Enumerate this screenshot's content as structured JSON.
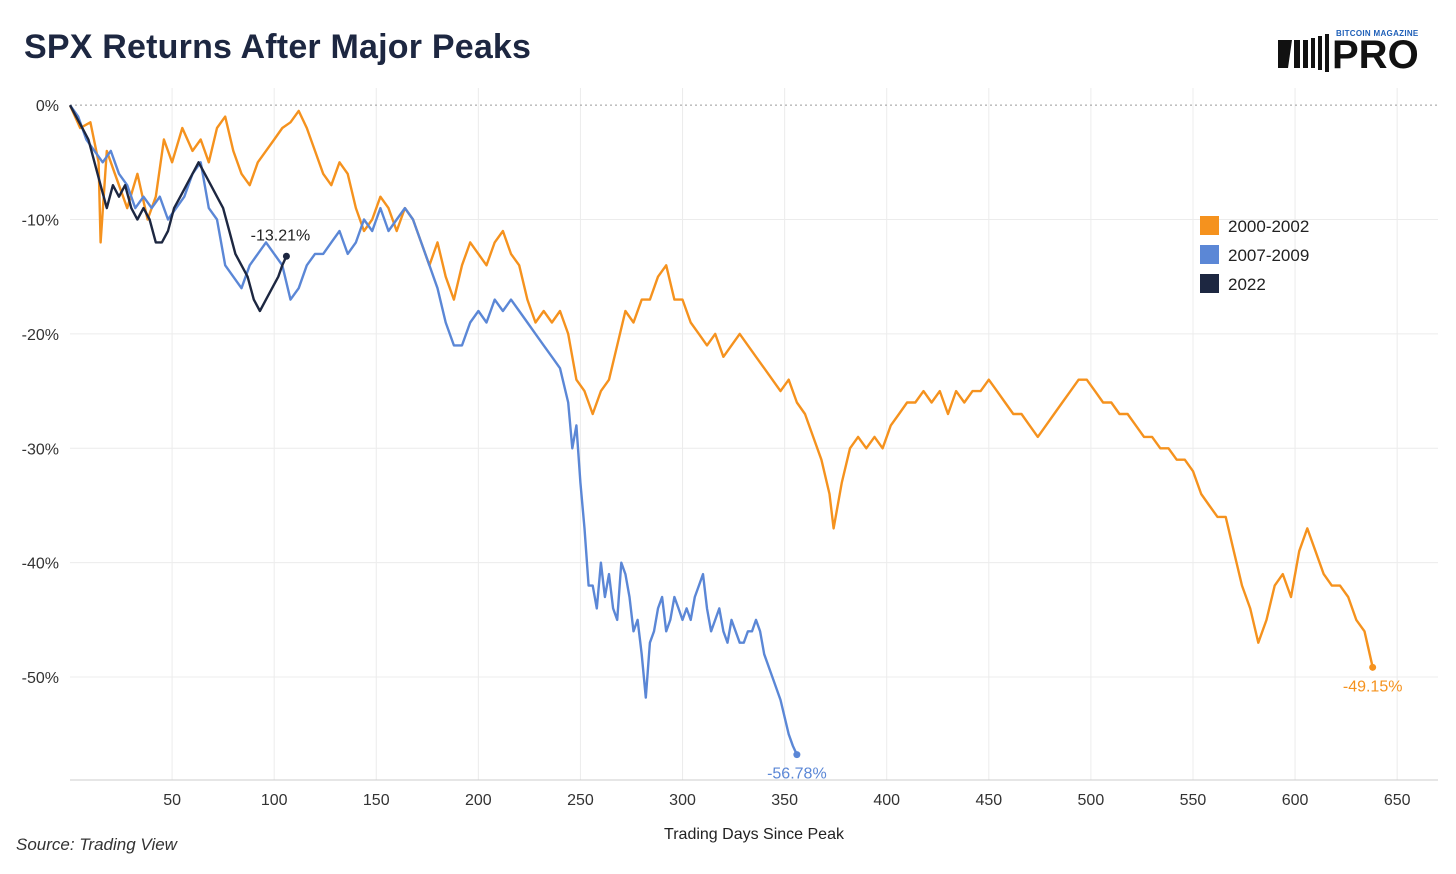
{
  "header": {
    "title": "SPX Returns After Major Peaks"
  },
  "logo": {
    "small_text": "BITCOIN MAGAZINE",
    "big_text": "PRO"
  },
  "footer": {
    "source": "Source: Trading View"
  },
  "chart_data": {
    "type": "line",
    "title": "SPX Returns After Major Peaks",
    "xlabel": "Trading Days Since Peak",
    "ylabel": "",
    "xlim": [
      0,
      670
    ],
    "ylim": [
      -59,
      1.5
    ],
    "x_ticks": [
      50,
      100,
      150,
      200,
      250,
      300,
      350,
      400,
      450,
      500,
      550,
      600,
      650
    ],
    "x_tick_labels": [
      "50",
      "100",
      "150",
      "200",
      "250",
      "300",
      "350",
      "400",
      "450",
      "500",
      "550",
      "600",
      "650"
    ],
    "y_ticks": [
      0,
      -10,
      -20,
      -30,
      -40,
      -50
    ],
    "y_tick_labels": [
      "0%",
      "-10%",
      "-20%",
      "-30%",
      "-40%",
      "-50%"
    ],
    "grid": true,
    "legend_position": "right",
    "series": [
      {
        "name": "2000-2002",
        "color": "#f5921e",
        "end_label": "-49.15%",
        "points": [
          [
            0,
            0
          ],
          [
            5,
            -2
          ],
          [
            10,
            -1.5
          ],
          [
            14,
            -5
          ],
          [
            15,
            -12
          ],
          [
            18,
            -4
          ],
          [
            22,
            -6
          ],
          [
            28,
            -9
          ],
          [
            33,
            -6
          ],
          [
            38,
            -10
          ],
          [
            42,
            -8
          ],
          [
            46,
            -3
          ],
          [
            50,
            -5
          ],
          [
            55,
            -2
          ],
          [
            60,
            -4
          ],
          [
            64,
            -3
          ],
          [
            68,
            -5
          ],
          [
            72,
            -2
          ],
          [
            76,
            -1
          ],
          [
            80,
            -4
          ],
          [
            84,
            -6
          ],
          [
            88,
            -7
          ],
          [
            92,
            -5
          ],
          [
            96,
            -4
          ],
          [
            100,
            -3
          ],
          [
            104,
            -2
          ],
          [
            108,
            -1.5
          ],
          [
            112,
            -0.5
          ],
          [
            116,
            -2
          ],
          [
            120,
            -4
          ],
          [
            124,
            -6
          ],
          [
            128,
            -7
          ],
          [
            132,
            -5
          ],
          [
            136,
            -6
          ],
          [
            140,
            -9
          ],
          [
            144,
            -11
          ],
          [
            148,
            -10
          ],
          [
            152,
            -8
          ],
          [
            156,
            -9
          ],
          [
            160,
            -11
          ],
          [
            164,
            -9
          ],
          [
            168,
            -10
          ],
          [
            172,
            -12
          ],
          [
            176,
            -14
          ],
          [
            180,
            -12
          ],
          [
            184,
            -15
          ],
          [
            188,
            -17
          ],
          [
            192,
            -14
          ],
          [
            196,
            -12
          ],
          [
            200,
            -13
          ],
          [
            204,
            -14
          ],
          [
            208,
            -12
          ],
          [
            212,
            -11
          ],
          [
            216,
            -13
          ],
          [
            220,
            -14
          ],
          [
            224,
            -17
          ],
          [
            228,
            -19
          ],
          [
            232,
            -18
          ],
          [
            236,
            -19
          ],
          [
            240,
            -18
          ],
          [
            244,
            -20
          ],
          [
            248,
            -24
          ],
          [
            252,
            -25
          ],
          [
            256,
            -27
          ],
          [
            260,
            -25
          ],
          [
            264,
            -24
          ],
          [
            268,
            -21
          ],
          [
            272,
            -18
          ],
          [
            276,
            -19
          ],
          [
            280,
            -17
          ],
          [
            284,
            -17
          ],
          [
            288,
            -15
          ],
          [
            292,
            -14
          ],
          [
            296,
            -17
          ],
          [
            300,
            -17
          ],
          [
            304,
            -19
          ],
          [
            308,
            -20
          ],
          [
            312,
            -21
          ],
          [
            316,
            -20
          ],
          [
            320,
            -22
          ],
          [
            324,
            -21
          ],
          [
            328,
            -20
          ],
          [
            332,
            -21
          ],
          [
            336,
            -22
          ],
          [
            340,
            -23
          ],
          [
            344,
            -24
          ],
          [
            348,
            -25
          ],
          [
            352,
            -24
          ],
          [
            356,
            -26
          ],
          [
            360,
            -27
          ],
          [
            364,
            -29
          ],
          [
            368,
            -31
          ],
          [
            372,
            -34
          ],
          [
            374,
            -37
          ],
          [
            378,
            -33
          ],
          [
            382,
            -30
          ],
          [
            386,
            -29
          ],
          [
            390,
            -30
          ],
          [
            394,
            -29
          ],
          [
            398,
            -30
          ],
          [
            402,
            -28
          ],
          [
            406,
            -27
          ],
          [
            410,
            -26
          ],
          [
            414,
            -26
          ],
          [
            418,
            -25
          ],
          [
            422,
            -26
          ],
          [
            426,
            -25
          ],
          [
            430,
            -27
          ],
          [
            434,
            -25
          ],
          [
            438,
            -26
          ],
          [
            442,
            -25
          ],
          [
            446,
            -25
          ],
          [
            450,
            -24
          ],
          [
            454,
            -25
          ],
          [
            458,
            -26
          ],
          [
            462,
            -27
          ],
          [
            466,
            -27
          ],
          [
            470,
            -28
          ],
          [
            474,
            -29
          ],
          [
            478,
            -28
          ],
          [
            482,
            -27
          ],
          [
            486,
            -26
          ],
          [
            490,
            -25
          ],
          [
            494,
            -24
          ],
          [
            498,
            -24
          ],
          [
            502,
            -25
          ],
          [
            506,
            -26
          ],
          [
            510,
            -26
          ],
          [
            514,
            -27
          ],
          [
            518,
            -27
          ],
          [
            522,
            -28
          ],
          [
            526,
            -29
          ],
          [
            530,
            -29
          ],
          [
            534,
            -30
          ],
          [
            538,
            -30
          ],
          [
            542,
            -31
          ],
          [
            546,
            -31
          ],
          [
            550,
            -32
          ],
          [
            554,
            -34
          ],
          [
            558,
            -35
          ],
          [
            562,
            -36
          ],
          [
            566,
            -36
          ],
          [
            570,
            -39
          ],
          [
            574,
            -42
          ],
          [
            578,
            -44
          ],
          [
            582,
            -47
          ],
          [
            586,
            -45
          ],
          [
            590,
            -42
          ],
          [
            594,
            -41
          ],
          [
            598,
            -43
          ],
          [
            602,
            -39
          ],
          [
            606,
            -37
          ],
          [
            610,
            -39
          ],
          [
            614,
            -41
          ],
          [
            618,
            -42
          ],
          [
            622,
            -42
          ],
          [
            626,
            -43
          ],
          [
            630,
            -45
          ],
          [
            634,
            -46
          ],
          [
            638,
            -49.15
          ]
        ]
      },
      {
        "name": "2007-2009",
        "color": "#5b87d6",
        "end_label": "-56.78%",
        "points": [
          [
            0,
            0
          ],
          [
            4,
            -1
          ],
          [
            8,
            -3
          ],
          [
            12,
            -4
          ],
          [
            16,
            -5
          ],
          [
            20,
            -4
          ],
          [
            24,
            -6
          ],
          [
            28,
            -7
          ],
          [
            32,
            -9
          ],
          [
            36,
            -8
          ],
          [
            40,
            -9
          ],
          [
            44,
            -8
          ],
          [
            48,
            -10
          ],
          [
            52,
            -9
          ],
          [
            56,
            -8
          ],
          [
            60,
            -6
          ],
          [
            64,
            -5
          ],
          [
            68,
            -9
          ],
          [
            72,
            -10
          ],
          [
            76,
            -14
          ],
          [
            80,
            -15
          ],
          [
            84,
            -16
          ],
          [
            88,
            -14
          ],
          [
            92,
            -13
          ],
          [
            96,
            -12
          ],
          [
            100,
            -13
          ],
          [
            104,
            -14
          ],
          [
            108,
            -17
          ],
          [
            112,
            -16
          ],
          [
            116,
            -14
          ],
          [
            120,
            -13
          ],
          [
            124,
            -13
          ],
          [
            128,
            -12
          ],
          [
            132,
            -11
          ],
          [
            136,
            -13
          ],
          [
            140,
            -12
          ],
          [
            144,
            -10
          ],
          [
            148,
            -11
          ],
          [
            152,
            -9
          ],
          [
            156,
            -11
          ],
          [
            160,
            -10
          ],
          [
            164,
            -9
          ],
          [
            168,
            -10
          ],
          [
            172,
            -12
          ],
          [
            176,
            -14
          ],
          [
            180,
            -16
          ],
          [
            184,
            -19
          ],
          [
            188,
            -21
          ],
          [
            192,
            -21
          ],
          [
            196,
            -19
          ],
          [
            200,
            -18
          ],
          [
            204,
            -19
          ],
          [
            208,
            -17
          ],
          [
            212,
            -18
          ],
          [
            216,
            -17
          ],
          [
            220,
            -18
          ],
          [
            224,
            -19
          ],
          [
            228,
            -20
          ],
          [
            232,
            -21
          ],
          [
            236,
            -22
          ],
          [
            240,
            -23
          ],
          [
            244,
            -26
          ],
          [
            246,
            -30
          ],
          [
            248,
            -28
          ],
          [
            250,
            -33
          ],
          [
            252,
            -37
          ],
          [
            254,
            -42
          ],
          [
            256,
            -42
          ],
          [
            258,
            -44
          ],
          [
            260,
            -40
          ],
          [
            262,
            -43
          ],
          [
            264,
            -41
          ],
          [
            266,
            -44
          ],
          [
            268,
            -45
          ],
          [
            270,
            -40
          ],
          [
            272,
            -41
          ],
          [
            274,
            -43
          ],
          [
            276,
            -46
          ],
          [
            278,
            -45
          ],
          [
            280,
            -48
          ],
          [
            282,
            -51.8
          ],
          [
            284,
            -47
          ],
          [
            286,
            -46
          ],
          [
            288,
            -44
          ],
          [
            290,
            -43
          ],
          [
            292,
            -46
          ],
          [
            294,
            -45
          ],
          [
            296,
            -43
          ],
          [
            298,
            -44
          ],
          [
            300,
            -45
          ],
          [
            302,
            -44
          ],
          [
            304,
            -45
          ],
          [
            306,
            -43
          ],
          [
            308,
            -42
          ],
          [
            310,
            -41
          ],
          [
            312,
            -44
          ],
          [
            314,
            -46
          ],
          [
            316,
            -45
          ],
          [
            318,
            -44
          ],
          [
            320,
            -46
          ],
          [
            322,
            -47
          ],
          [
            324,
            -45
          ],
          [
            326,
            -46
          ],
          [
            328,
            -47
          ],
          [
            330,
            -47
          ],
          [
            332,
            -46
          ],
          [
            334,
            -46
          ],
          [
            336,
            -45
          ],
          [
            338,
            -46
          ],
          [
            340,
            -48
          ],
          [
            344,
            -50
          ],
          [
            348,
            -52
          ],
          [
            352,
            -55
          ],
          [
            354,
            -56
          ],
          [
            356,
            -56.78
          ]
        ]
      },
      {
        "name": "2022",
        "color": "#1d2741",
        "end_label": "-13.21%",
        "points": [
          [
            0,
            0
          ],
          [
            3,
            -1
          ],
          [
            6,
            -2
          ],
          [
            9,
            -3
          ],
          [
            12,
            -5
          ],
          [
            15,
            -7
          ],
          [
            18,
            -9
          ],
          [
            21,
            -7
          ],
          [
            24,
            -8
          ],
          [
            27,
            -7
          ],
          [
            30,
            -9
          ],
          [
            33,
            -10
          ],
          [
            36,
            -9
          ],
          [
            39,
            -10
          ],
          [
            42,
            -12
          ],
          [
            45,
            -12
          ],
          [
            48,
            -11
          ],
          [
            51,
            -9
          ],
          [
            54,
            -8
          ],
          [
            57,
            -7
          ],
          [
            60,
            -6
          ],
          [
            63,
            -5
          ],
          [
            66,
            -6
          ],
          [
            69,
            -7
          ],
          [
            72,
            -8
          ],
          [
            75,
            -9
          ],
          [
            78,
            -11
          ],
          [
            81,
            -13
          ],
          [
            84,
            -14
          ],
          [
            87,
            -15
          ],
          [
            90,
            -17
          ],
          [
            93,
            -18
          ],
          [
            96,
            -17
          ],
          [
            99,
            -16
          ],
          [
            102,
            -15
          ],
          [
            104,
            -14
          ],
          [
            106,
            -13.21
          ]
        ]
      }
    ]
  }
}
